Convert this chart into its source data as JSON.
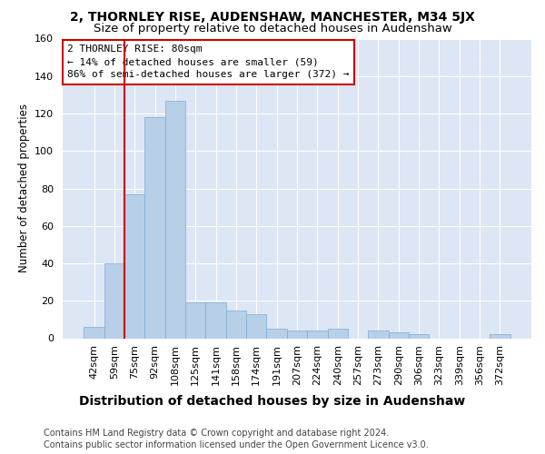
{
  "title": "2, THORNLEY RISE, AUDENSHAW, MANCHESTER, M34 5JX",
  "subtitle": "Size of property relative to detached houses in Audenshaw",
  "xlabel_bottom": "Distribution of detached houses by size in Audenshaw",
  "ylabel": "Number of detached properties",
  "footnote1": "Contains HM Land Registry data © Crown copyright and database right 2024.",
  "footnote2": "Contains public sector information licensed under the Open Government Licence v3.0.",
  "categories": [
    "42sqm",
    "59sqm",
    "75sqm",
    "92sqm",
    "108sqm",
    "125sqm",
    "141sqm",
    "158sqm",
    "174sqm",
    "191sqm",
    "207sqm",
    "224sqm",
    "240sqm",
    "257sqm",
    "273sqm",
    "290sqm",
    "306sqm",
    "323sqm",
    "339sqm",
    "356sqm",
    "372sqm"
  ],
  "values": [
    6,
    40,
    77,
    118,
    127,
    19,
    19,
    15,
    13,
    5,
    4,
    4,
    5,
    0,
    4,
    3,
    2,
    0,
    0,
    0,
    2
  ],
  "bar_color": "#b8cfe8",
  "bar_edge_color": "#7aadd4",
  "vline_color": "#cc0000",
  "annotation_line1": "2 THORNLEY RISE: 80sqm",
  "annotation_line2": "← 14% of detached houses are smaller (59)",
  "annotation_line3": "86% of semi-detached houses are larger (372) →",
  "annotation_box_color": "#cc0000",
  "ylim": [
    0,
    160
  ],
  "yticks": [
    0,
    20,
    40,
    60,
    80,
    100,
    120,
    140,
    160
  ],
  "background_color": "#dce6f5",
  "title_fontsize": 10,
  "subtitle_fontsize": 9.5,
  "ylabel_fontsize": 8.5,
  "tick_fontsize": 8,
  "annotation_fontsize": 8,
  "xlabel_fontsize": 10,
  "footnote_fontsize": 7
}
